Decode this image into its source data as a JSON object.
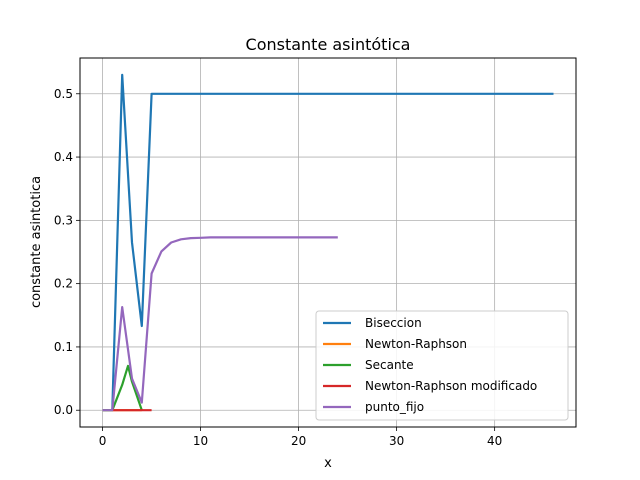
{
  "chart_data": {
    "type": "line",
    "title": "Constante asintótica",
    "xlabel": "x",
    "ylabel": "constante asintotica",
    "xlim": [
      -2.3,
      48.3
    ],
    "ylim": [
      -0.0265,
      0.5565
    ],
    "xticks": [
      0,
      10,
      20,
      30,
      40
    ],
    "yticks": [
      0.0,
      0.1,
      0.2,
      0.3,
      0.4,
      0.5
    ],
    "xtick_labels": [
      "0",
      "10",
      "20",
      "30",
      "40"
    ],
    "ytick_labels": [
      "0.0",
      "0.1",
      "0.2",
      "0.3",
      "0.4",
      "0.5"
    ],
    "grid": true,
    "legend_position": "lower-right",
    "series": [
      {
        "name": "Biseccion",
        "color": "#1f77b4",
        "x": [
          0,
          1,
          2,
          3,
          4,
          5,
          6,
          7,
          8,
          9,
          10,
          11,
          12,
          13,
          14,
          15,
          16,
          17,
          18,
          19,
          20,
          21,
          22,
          23,
          24,
          25,
          26,
          27,
          28,
          29,
          30,
          31,
          32,
          33,
          34,
          35,
          36,
          37,
          38,
          39,
          40,
          41,
          42,
          43,
          44,
          45,
          46
        ],
        "y": [
          0,
          0,
          0.53,
          0.265,
          0.133,
          0.5,
          0.5,
          0.5,
          0.5,
          0.5,
          0.5,
          0.5,
          0.5,
          0.5,
          0.5,
          0.5,
          0.5,
          0.5,
          0.5,
          0.5,
          0.5,
          0.5,
          0.5,
          0.5,
          0.5,
          0.5,
          0.5,
          0.5,
          0.5,
          0.5,
          0.5,
          0.5,
          0.5,
          0.5,
          0.5,
          0.5,
          0.5,
          0.5,
          0.5,
          0.5,
          0.5,
          0.5,
          0.5,
          0.5,
          0.5,
          0.5,
          0.5
        ]
      },
      {
        "name": "Newton-Raphson",
        "color": "#ff7f0e",
        "x": [
          0,
          1,
          2,
          3,
          4
        ],
        "y": [
          0,
          0,
          0,
          0,
          0
        ]
      },
      {
        "name": "Secante",
        "color": "#2ca02c",
        "x": [
          0,
          1,
          2,
          2.6,
          3,
          4
        ],
        "y": [
          0,
          0,
          0.04,
          0.07,
          0.045,
          0
        ]
      },
      {
        "name": "Newton-Raphson modificado",
        "color": "#d62728",
        "x": [
          1,
          2,
          3,
          4,
          5
        ],
        "y": [
          0,
          0,
          0,
          0,
          0
        ]
      },
      {
        "name": "punto_fijo",
        "color": "#9467bd",
        "x": [
          0,
          1,
          2,
          3,
          4,
          5,
          6,
          7,
          8,
          9,
          10,
          11,
          12,
          13,
          14,
          15,
          16,
          17,
          18,
          19,
          20,
          21,
          22,
          23,
          24
        ],
        "y": [
          0,
          0,
          0.163,
          0.05,
          0.012,
          0.216,
          0.251,
          0.265,
          0.27,
          0.272,
          0.2725,
          0.273,
          0.273,
          0.273,
          0.273,
          0.273,
          0.273,
          0.273,
          0.273,
          0.273,
          0.273,
          0.273,
          0.273,
          0.273,
          0.273
        ]
      }
    ]
  }
}
